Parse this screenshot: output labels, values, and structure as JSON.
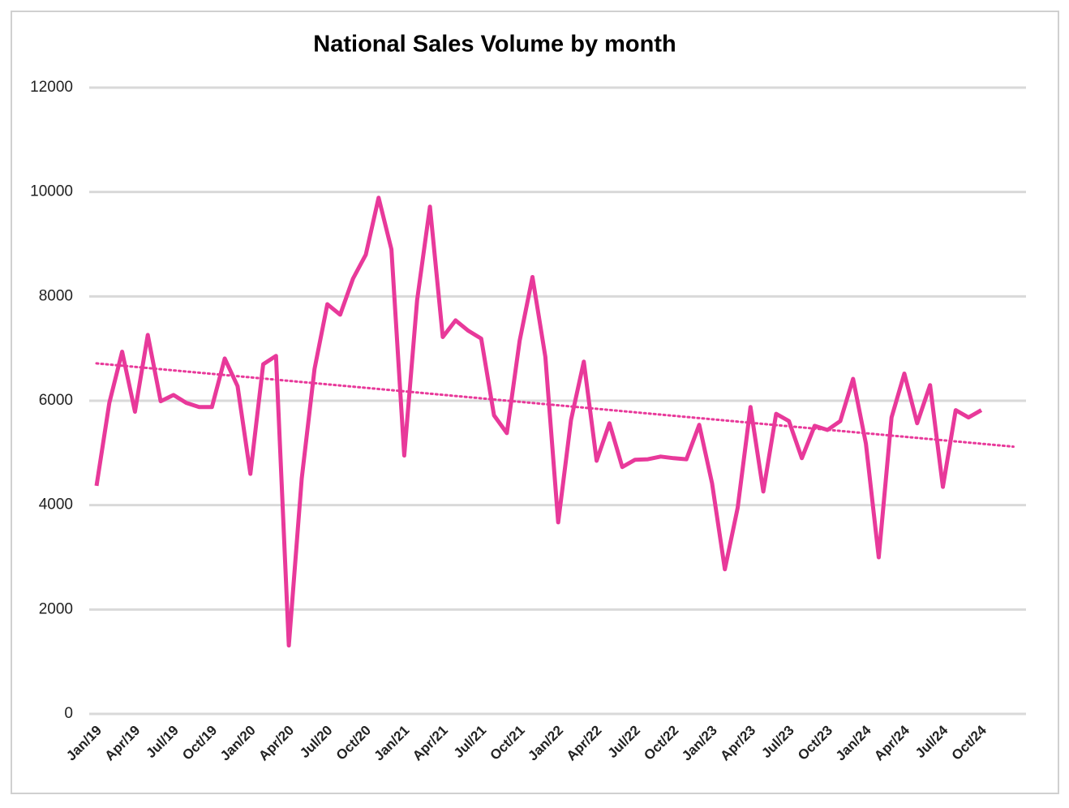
{
  "chart_data": {
    "type": "line",
    "title": "National Sales Volume by month",
    "categories": [
      "Jan/19",
      null,
      null,
      "Apr/19",
      null,
      null,
      "Jul/19",
      null,
      null,
      "Oct/19",
      null,
      null,
      "Jan/20",
      null,
      null,
      "Apr/20",
      null,
      null,
      "Jul/20",
      null,
      null,
      "Oct/20",
      null,
      null,
      "Jan/21",
      null,
      null,
      "Apr/21",
      null,
      null,
      "Jul/21",
      null,
      null,
      "Oct/21",
      null,
      null,
      "Jan/22",
      null,
      null,
      "Apr/22",
      null,
      null,
      "Jul/22",
      null,
      null,
      "Oct/22",
      null,
      null,
      "Jan/23",
      null,
      null,
      "Apr/23",
      null,
      null,
      "Jul/23",
      null,
      null,
      "Oct/23",
      null,
      null,
      "Jan/24",
      null,
      null,
      "Apr/24",
      null,
      null,
      "Jul/24",
      null,
      null,
      "Oct/24"
    ],
    "series": [
      {
        "color": "#e8399a",
        "values": [
          4370,
          5960,
          6940,
          5790,
          7260,
          5990,
          6110,
          5960,
          5880,
          5880,
          6810,
          6280,
          4600,
          6700,
          6860,
          1310,
          4510,
          6610,
          7850,
          7650,
          8340,
          8800,
          9890,
          8900,
          4950,
          7930,
          9720,
          7220,
          7540,
          7340,
          7190,
          5720,
          5380,
          7150,
          8370,
          6840,
          3670,
          5630,
          6750,
          4850,
          5570,
          4730,
          4870,
          4880,
          4930,
          4900,
          4880,
          5540,
          4420,
          2770,
          3950,
          5880,
          4260,
          5750,
          5610,
          4900,
          5520,
          5440,
          5610,
          6420,
          5180,
          3000,
          5680,
          6520,
          5570,
          6300,
          4350,
          5820,
          5680,
          5820
        ]
      }
    ],
    "trendline": "linear",
    "ylim": [
      0,
      12000
    ],
    "yticks": [
      0,
      2000,
      4000,
      6000,
      8000,
      10000,
      12000
    ],
    "grid": true
  }
}
